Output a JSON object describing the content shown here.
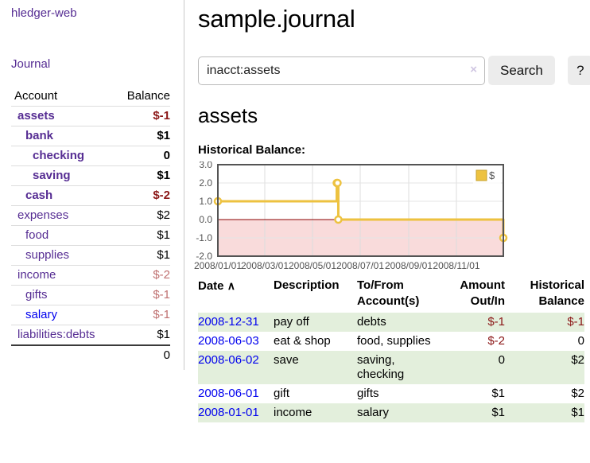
{
  "sidebar": {
    "app_title": "hledger-web",
    "journal_link": "Journal",
    "accounts_table": {
      "header_account": "Account",
      "header_balance": "Balance",
      "rows": [
        {
          "name": "assets",
          "balance": "$-1"
        },
        {
          "name": "bank",
          "balance": "$1"
        },
        {
          "name": "checking",
          "balance": "0"
        },
        {
          "name": "saving",
          "balance": "$1"
        },
        {
          "name": "cash",
          "balance": "$-2"
        },
        {
          "name": "expenses",
          "balance": "$2"
        },
        {
          "name": "food",
          "balance": "$1"
        },
        {
          "name": "supplies",
          "balance": "$1"
        },
        {
          "name": "income",
          "balance": "$-2"
        },
        {
          "name": "gifts",
          "balance": "$-1"
        },
        {
          "name": "salary",
          "balance": "$-1"
        },
        {
          "name": "liabilities:debts",
          "balance": "$1"
        }
      ],
      "total": "0"
    }
  },
  "main": {
    "title": "sample.journal",
    "search": {
      "value": "inacct:assets",
      "clear_icon": "×",
      "button_label": "Search",
      "help_label": "?"
    },
    "account_heading": "assets",
    "chart_label": "Historical Balance:"
  },
  "chart_data": {
    "type": "line",
    "mode": "steps",
    "title": "Historical Balance:",
    "series": [
      {
        "name": "$",
        "color": "#edc240",
        "points": [
          {
            "date": "2008-01-01",
            "value": 1
          },
          {
            "date": "2008-06-01",
            "value": 2
          },
          {
            "date": "2008-06-02",
            "value": 2
          },
          {
            "date": "2008-06-03",
            "value": 0
          },
          {
            "date": "2008-12-31",
            "value": -1
          }
        ]
      }
    ],
    "x_range": [
      "2008-01-01",
      "2008-12-31"
    ],
    "y_range": [
      -2,
      3
    ],
    "y_ticks": [
      3.0,
      2.0,
      1.0,
      0.0,
      -1.0,
      -2.0
    ],
    "x_ticks": [
      {
        "date": "2008-01-01",
        "label": "2008/01/01"
      },
      {
        "date": "2008-03-01",
        "label": "2008/03/01"
      },
      {
        "date": "2008-05-01",
        "label": "2008/05/01"
      },
      {
        "date": "2008-07-01",
        "label": "2008/07/01"
      },
      {
        "date": "2008-09-01",
        "label": "2008/09/01"
      },
      {
        "date": "2008-11-01",
        "label": "2008/11/01"
      }
    ],
    "legend": {
      "label": "$",
      "position": "top-right"
    },
    "grid": true,
    "negative_region_fill": "#f9dbdb",
    "zero_line_color": "#8b0000",
    "border_color": "#545454",
    "tick_label_color": "#545454"
  },
  "register": {
    "headers": [
      "Date",
      "Description",
      "To/From Account(s)",
      "Amount Out/In",
      "Historical Balance"
    ],
    "sort_icon": "∧",
    "rows": [
      {
        "date": "2008-12-31",
        "description": "pay off",
        "accounts": "debts",
        "amount": "$-1",
        "balance": "$-1"
      },
      {
        "date": "2008-06-03",
        "description": "eat & shop",
        "accounts": "food, supplies",
        "amount": "$-2",
        "balance": "0"
      },
      {
        "date": "2008-06-02",
        "description": "save",
        "accounts": "saving, checking",
        "amount": "0",
        "balance": "$2"
      },
      {
        "date": "2008-06-01",
        "description": "gift",
        "accounts": "gifts",
        "amount": "$1",
        "balance": "$2"
      },
      {
        "date": "2008-01-01",
        "description": "income",
        "accounts": "salary",
        "amount": "$1",
        "balance": "$1"
      }
    ]
  }
}
